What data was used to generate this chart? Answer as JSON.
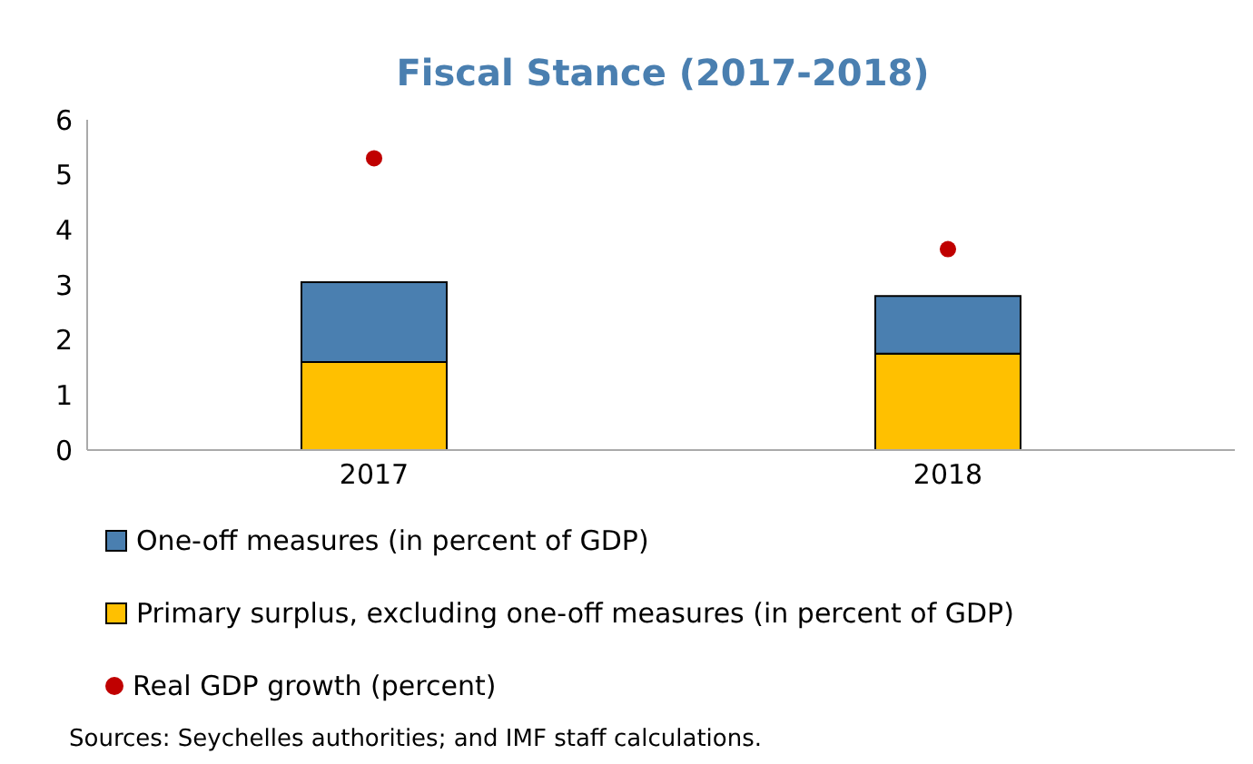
{
  "chart_data": {
    "type": "bar",
    "title": "Fiscal Stance (2017-2018)",
    "categories": [
      "2017",
      "2018"
    ],
    "stacked": true,
    "series": [
      {
        "name": "Primary surplus, excluding one-off measures (in percent of GDP)",
        "color": "#ffc000",
        "values": [
          1.6,
          1.75
        ]
      },
      {
        "name": "One-off measures (in percent of GDP)",
        "color": "#4a7fb0",
        "values": [
          1.45,
          1.05
        ]
      },
      {
        "name": "Real GDP growth (percent)",
        "type": "scatter",
        "color": "#c00000",
        "values": [
          5.3,
          3.65
        ]
      }
    ],
    "ylim": [
      0,
      6
    ],
    "yticks": [
      0,
      1,
      2,
      3,
      4,
      5,
      6
    ],
    "grid": false,
    "legend": "bottom",
    "marker": "circle",
    "annotations": [
      "Sources: Seychelles authorities; and IMF staff calculations."
    ]
  }
}
